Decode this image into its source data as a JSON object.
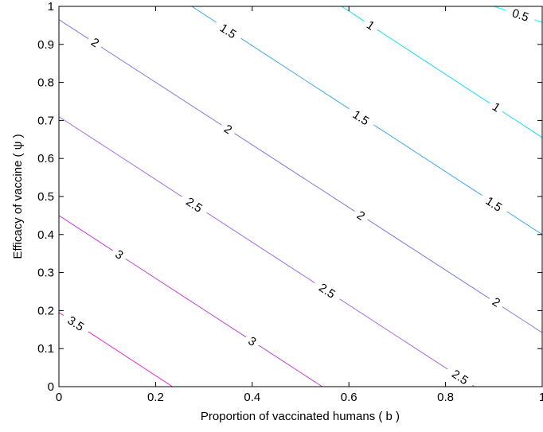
{
  "chart_data": {
    "type": "contour",
    "xlabel": "Proportion of vaccinated humans ( b )",
    "ylabel": "Efficacy of vaccine ( ψ )",
    "xlim": [
      0,
      1
    ],
    "ylim": [
      0,
      1
    ],
    "xticks": [
      0,
      0.2,
      0.4,
      0.6,
      0.8,
      1
    ],
    "yticks": [
      0,
      0.1,
      0.2,
      0.3,
      0.4,
      0.5,
      0.6,
      0.7,
      0.8,
      0.9,
      1
    ],
    "grid": false,
    "contours": [
      {
        "level": "0.5",
        "color": "#00ffff",
        "x": [
          0.9,
          1.0
        ],
        "y": [
          1.0,
          0.958
        ],
        "labels": [
          {
            "text": "0.5",
            "x": 0.955,
            "y": 0.977
          }
        ]
      },
      {
        "level": "1",
        "color": "#1adcf0",
        "x": [
          0.585,
          1.0
        ],
        "y": [
          1.0,
          0.655
        ],
        "labels": [
          {
            "text": "1",
            "x": 0.645,
            "y": 0.95
          },
          {
            "text": "1",
            "x": 0.905,
            "y": 0.735
          }
        ]
      },
      {
        "level": "1.5",
        "color": "#3da8e8",
        "x": [
          0.275,
          1.0
        ],
        "y": [
          1.0,
          0.4
        ],
        "labels": [
          {
            "text": "1.5",
            "x": 0.35,
            "y": 0.935
          },
          {
            "text": "1.5",
            "x": 0.625,
            "y": 0.707
          },
          {
            "text": "1.5",
            "x": 0.9,
            "y": 0.48
          }
        ]
      },
      {
        "level": "2",
        "color": "#7b7be0",
        "x": [
          0.0,
          1.0
        ],
        "y": [
          0.965,
          0.142
        ],
        "labels": [
          {
            "text": "2",
            "x": 0.075,
            "y": 0.905
          },
          {
            "text": "2",
            "x": 0.35,
            "y": 0.677
          },
          {
            "text": "2",
            "x": 0.625,
            "y": 0.45
          },
          {
            "text": "2",
            "x": 0.905,
            "y": 0.222
          }
        ]
      },
      {
        "level": "2.5",
        "color": "#a06ee8",
        "x": [
          0.0,
          0.86
        ],
        "y": [
          0.71,
          0.0
        ],
        "labels": [
          {
            "text": "2.5",
            "x": 0.28,
            "y": 0.478
          },
          {
            "text": "2.5",
            "x": 0.555,
            "y": 0.252
          },
          {
            "text": "2.5",
            "x": 0.83,
            "y": 0.025
          }
        ]
      },
      {
        "level": "3",
        "color": "#c040d8",
        "x": [
          0.0,
          0.545
        ],
        "y": [
          0.45,
          0.0
        ],
        "labels": [
          {
            "text": "3",
            "x": 0.125,
            "y": 0.347
          },
          {
            "text": "3",
            "x": 0.4,
            "y": 0.119
          }
        ]
      },
      {
        "level": "3.5",
        "color": "#e020d8",
        "x": [
          0.0,
          0.235
        ],
        "y": [
          0.195,
          0.0
        ],
        "labels": [
          {
            "text": "3.5",
            "x": 0.035,
            "y": 0.166
          }
        ]
      }
    ]
  }
}
